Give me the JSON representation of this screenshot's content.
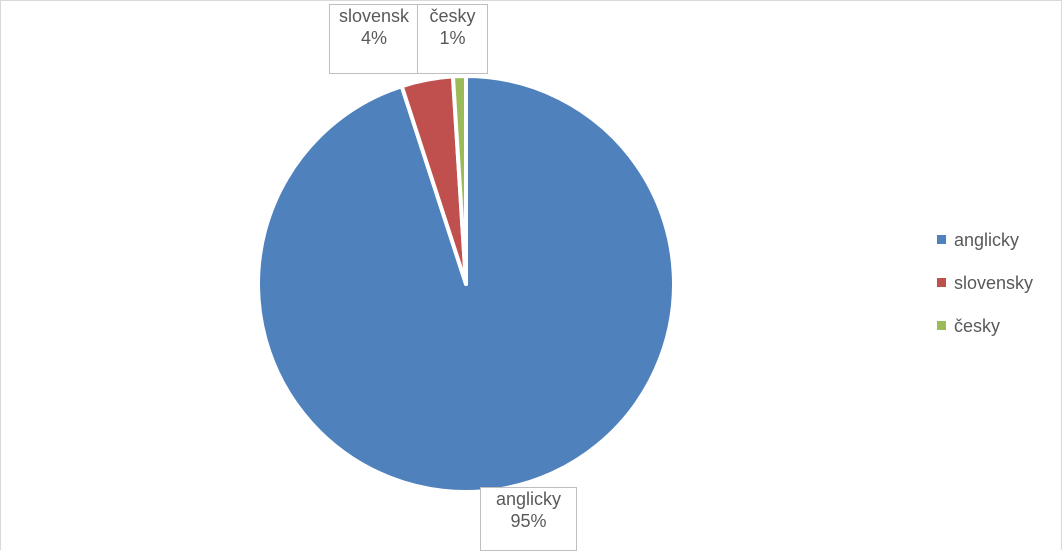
{
  "chart_data": {
    "type": "pie",
    "title": "",
    "legend_position": "right",
    "slices": [
      {
        "name": "anglicky",
        "value": 95,
        "label_name": "anglicky",
        "label_value": "95%",
        "color": "#4F81BD"
      },
      {
        "name": "slovensky",
        "value": 4,
        "label_name": "slovensk",
        "label_value": "4%",
        "color": "#C0504D"
      },
      {
        "name": "česky",
        "value": 1,
        "label_name": "česky",
        "label_value": "1%",
        "color": "#9BBB59"
      }
    ]
  }
}
